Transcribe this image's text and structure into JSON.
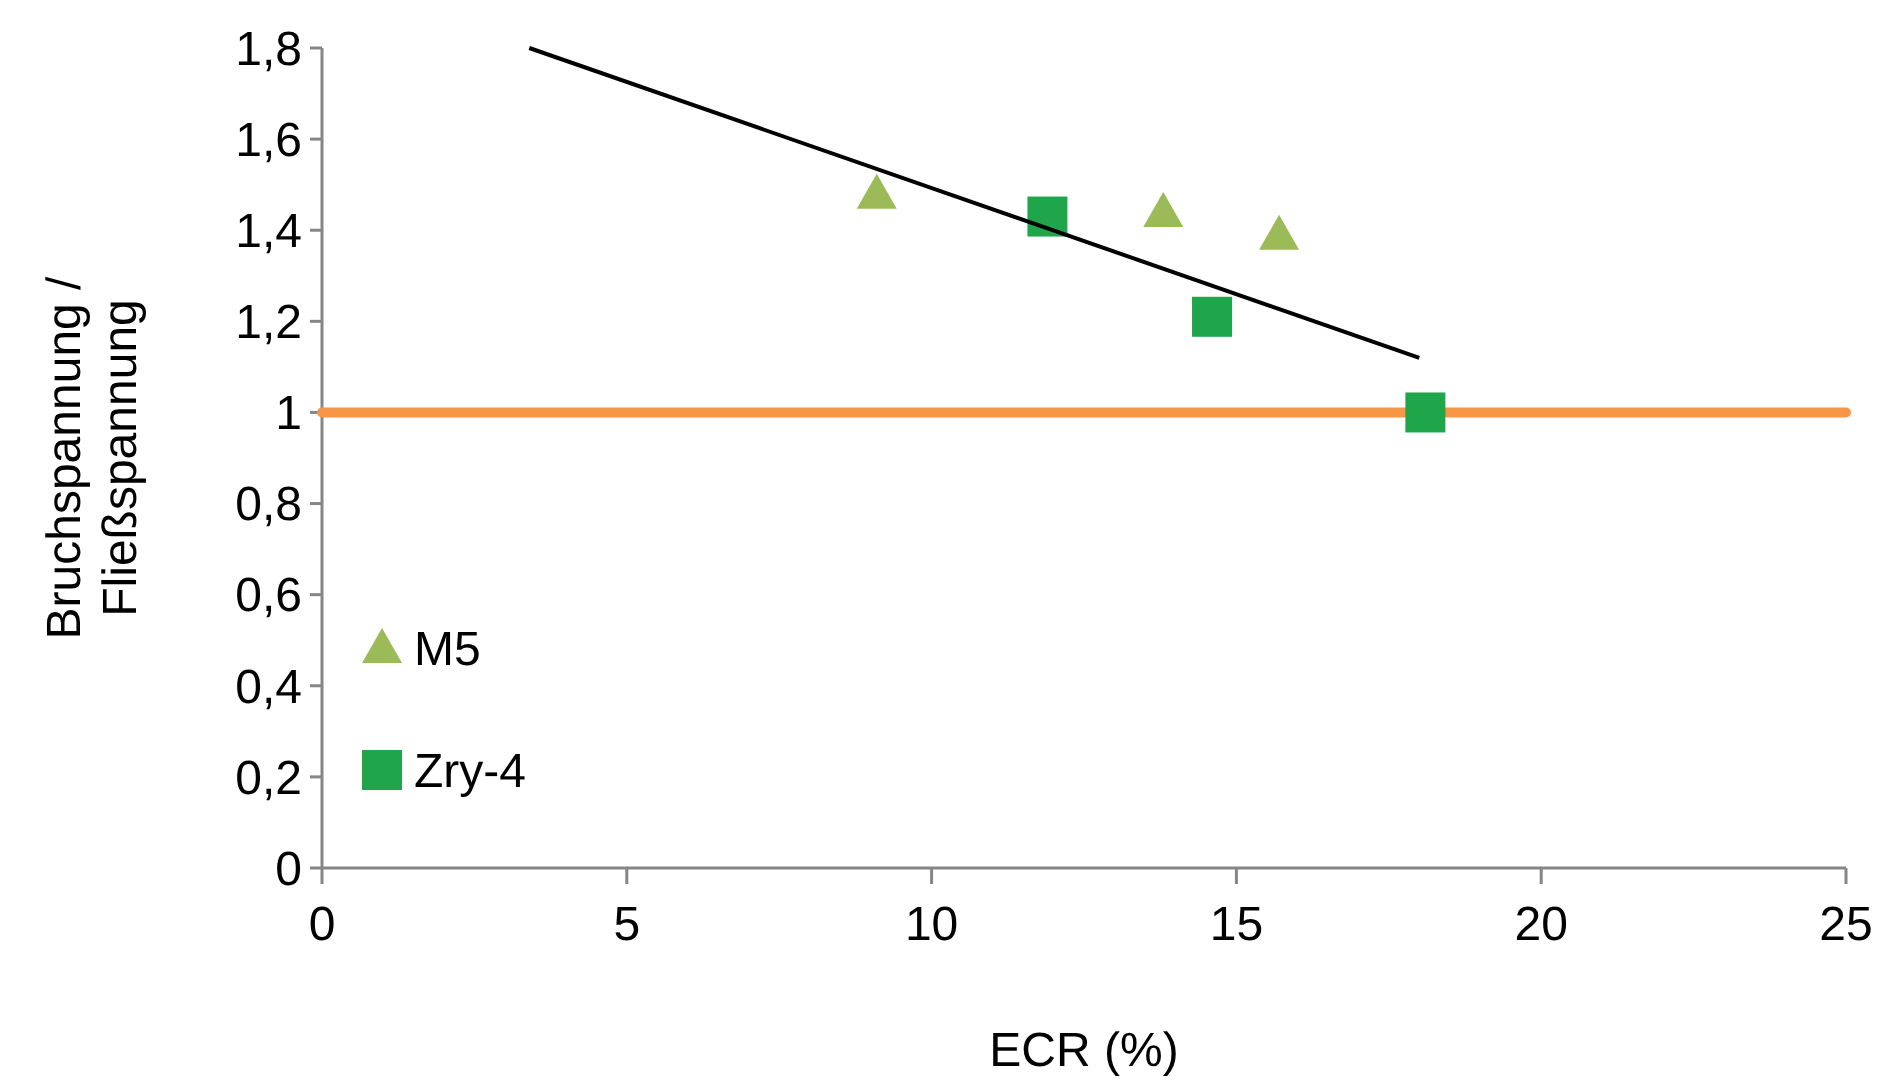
{
  "chart_data": {
    "type": "scatter",
    "xlabel": "ECR (%)",
    "ylabel": "Bruchspannung /\nFließspannung",
    "xlim": [
      0,
      25
    ],
    "xticks": [
      0,
      5,
      10,
      15,
      20,
      25
    ],
    "ylim": [
      0,
      1.8
    ],
    "yticks": [
      {
        "value": 0,
        "label": "0"
      },
      {
        "value": 0.2,
        "label": "0,2"
      },
      {
        "value": 0.4,
        "label": "0,4"
      },
      {
        "value": 0.6,
        "label": "0,6"
      },
      {
        "value": 0.8,
        "label": "0,8"
      },
      {
        "value": 1,
        "label": "1"
      },
      {
        "value": 1.2,
        "label": "1,2"
      },
      {
        "value": 1.4,
        "label": "1,4"
      },
      {
        "value": 1.6,
        "label": "1,6"
      },
      {
        "value": 1.8,
        "label": "1,8"
      }
    ],
    "legend": "bottom left",
    "grid": false,
    "series": [
      {
        "name": "M5",
        "color": "#9bbb59",
        "marker": "triangle",
        "x": [
          9.1,
          13.8,
          15.7
        ],
        "values": [
          1.48,
          1.44,
          1.39
        ]
      },
      {
        "name": "Zry-4",
        "color": "#1fa64a",
        "marker": "square",
        "x": [
          11.9,
          14.6,
          18.1
        ],
        "values": [
          1.43,
          1.21,
          1.0
        ]
      },
      {
        "type": "line",
        "color": "#000000",
        "marker": "none",
        "x": [
          3.4,
          18
        ],
        "values": [
          1.8,
          1.12
        ]
      }
    ],
    "ref_lines": [
      {
        "axis": "y",
        "value": 1,
        "color": "#f79646"
      }
    ]
  }
}
